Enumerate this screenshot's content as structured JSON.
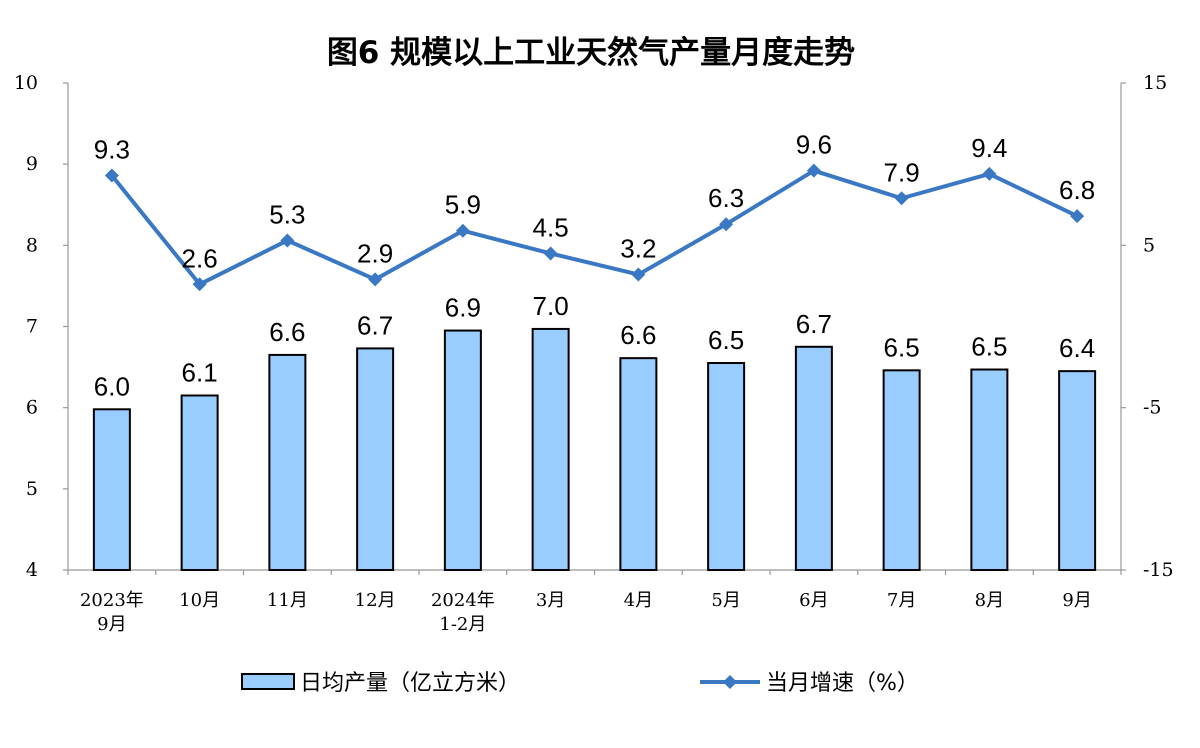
{
  "chart_data": {
    "type": "bar",
    "title": "图6  规模以上工业天然气产量月度走势",
    "categories": [
      [
        "2023年",
        "9月"
      ],
      [
        "10月"
      ],
      [
        "11月"
      ],
      [
        "12月"
      ],
      [
        "2024年",
        "1-2月"
      ],
      [
        "3月"
      ],
      [
        "4月"
      ],
      [
        "5月"
      ],
      [
        "6月"
      ],
      [
        "7月"
      ],
      [
        "8月"
      ],
      [
        "9月"
      ]
    ],
    "series": [
      {
        "name": "日均产量（亿立方米）",
        "type": "bar",
        "axis": "left",
        "color": "#99ccff",
        "values": [
          6.0,
          6.1,
          6.6,
          6.7,
          6.9,
          7.0,
          6.6,
          6.5,
          6.7,
          6.5,
          6.5,
          6.4
        ],
        "labels": [
          "6.0",
          "6.1",
          "6.6",
          "6.7",
          "6.9",
          "7.0",
          "6.6",
          "6.5",
          "6.7",
          "6.5",
          "6.5",
          "6.4"
        ],
        "plot_values": [
          5.98,
          6.15,
          6.65,
          6.73,
          6.95,
          6.97,
          6.61,
          6.55,
          6.75,
          6.46,
          6.47,
          6.45
        ]
      },
      {
        "name": "当月增速（%）",
        "type": "line",
        "axis": "right",
        "color": "#3a78c4",
        "values": [
          9.3,
          2.6,
          5.3,
          2.9,
          5.9,
          4.5,
          3.2,
          6.3,
          9.6,
          7.9,
          9.4,
          6.8
        ],
        "labels": [
          "9.3",
          "2.6",
          "5.3",
          "2.9",
          "5.9",
          "4.5",
          "3.2",
          "6.3",
          "9.6",
          "7.9",
          "9.4",
          "6.8"
        ]
      }
    ],
    "y_left": {
      "min": 4,
      "max": 10,
      "ticks": [
        4,
        5,
        6,
        7,
        8,
        9,
        10
      ],
      "tick_labels": [
        "4",
        "5",
        "6",
        "7",
        "8",
        "9",
        "10"
      ]
    },
    "y_right": {
      "min": -15,
      "max": 15,
      "ticks": [
        -15,
        -5,
        5,
        15
      ],
      "tick_labels": [
        "-15",
        "-5",
        "5",
        "15"
      ]
    },
    "grid": false,
    "legend": {
      "position": "bottom",
      "items": [
        {
          "label": "日均产量（亿立方米）",
          "type": "bar"
        },
        {
          "label": "当月增速（%）",
          "type": "line"
        }
      ]
    }
  }
}
